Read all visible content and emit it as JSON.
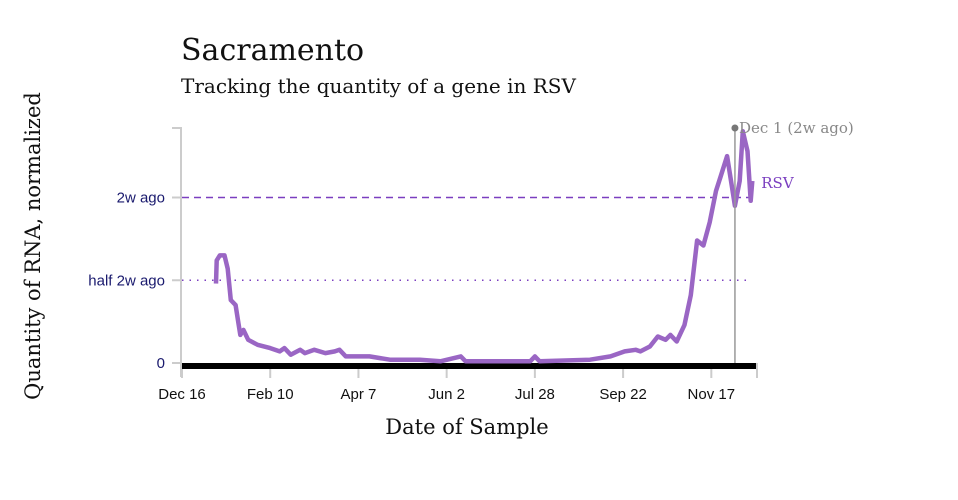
{
  "chart_data": {
    "type": "line",
    "title": "Sacramento",
    "subtitle": "Tracking the quantity of a gene in RSV",
    "xlabel": "Date of Sample",
    "ylabel": "Quantity of RNA, normalized",
    "x_unit": "days since Dec 16",
    "xlim": [
      0,
      365
    ],
    "ylim": [
      0,
      1.42
    ],
    "x_ticks": [
      {
        "day": 0,
        "label": "Dec 16"
      },
      {
        "day": 56,
        "label": "Feb 10"
      },
      {
        "day": 112,
        "label": "Apr 7"
      },
      {
        "day": 168,
        "label": "Jun 2"
      },
      {
        "day": 224,
        "label": "Jul 28"
      },
      {
        "day": 280,
        "label": "Sep 22"
      },
      {
        "day": 336,
        "label": "Nov 17"
      }
    ],
    "y_ticks": [
      {
        "value": 0,
        "label": "0"
      },
      {
        "value": 0.5,
        "label": "half 2w ago"
      },
      {
        "value": 1,
        "label": "2w ago"
      }
    ],
    "reference_lines": [
      {
        "value": 1,
        "style": "dashed"
      },
      {
        "value": 0.5,
        "style": "dotted"
      }
    ],
    "annotation": {
      "day": 351,
      "label": "Dec 1 (2w ago)"
    },
    "series": [
      {
        "name": "RSV",
        "color": "#9a66c4",
        "x": [
          21.6,
          22,
          24,
          27,
          29,
          31,
          34,
          36,
          37,
          39,
          42,
          48,
          56,
          62,
          65,
          69,
          75,
          78,
          84,
          91,
          97,
          100,
          104,
          119,
          132,
          151,
          164,
          177,
          180,
          221,
          224,
          227,
          259,
          272,
          281,
          288,
          291,
          297,
          302,
          307,
          310,
          314,
          319,
          323,
          327,
          331,
          335,
          339,
          342,
          346,
          349,
          351,
          354,
          356,
          359,
          361,
          362
        ],
        "y": [
          0.48,
          0.62,
          0.65,
          0.65,
          0.57,
          0.38,
          0.35,
          0.23,
          0.17,
          0.2,
          0.14,
          0.11,
          0.09,
          0.07,
          0.09,
          0.05,
          0.08,
          0.06,
          0.08,
          0.06,
          0.07,
          0.08,
          0.04,
          0.04,
          0.02,
          0.02,
          0.01,
          0.04,
          0.01,
          0.01,
          0.04,
          0.01,
          0.02,
          0.04,
          0.07,
          0.08,
          0.07,
          0.1,
          0.16,
          0.14,
          0.17,
          0.13,
          0.23,
          0.41,
          0.74,
          0.71,
          0.85,
          1.04,
          1.13,
          1.25,
          1.07,
          0.95,
          1.1,
          1.4,
          1.28,
          0.98,
          1.1
        ]
      }
    ]
  }
}
